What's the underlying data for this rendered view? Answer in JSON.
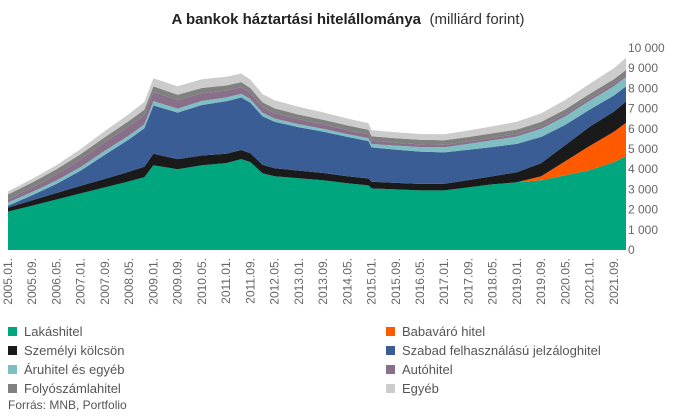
{
  "chart_data": {
    "type": "area",
    "title": "A bankok háztartási hitelállománya",
    "title_unit": "(milliárd forint)",
    "stacked": true,
    "x_tick_labels": [
      "2005.01.",
      "2005.09.",
      "2006.05.",
      "2007.01.",
      "2007.09.",
      "2008.05.",
      "2009.01.",
      "2009.09.",
      "2010.05.",
      "2011.01.",
      "2011.09.",
      "2012.05.",
      "2013.01.",
      "2013.09.",
      "2014.05.",
      "2015.01.",
      "2015.09.",
      "2016.05.",
      "2017.01.",
      "2017.09.",
      "2018.05.",
      "2019.01.",
      "2019.09.",
      "2020.05.",
      "2021.01.",
      "2021.09."
    ],
    "y_tick_labels": [
      "0",
      "1 000",
      "2 000",
      "3 000",
      "4 000",
      "5 000",
      "6 000",
      "7 000",
      "8 000",
      "9 000",
      "10 000"
    ],
    "ylim": [
      0,
      10000
    ],
    "legend_position": "bottom",
    "x": [
      "2005.01.",
      "2005.09.",
      "2006.05.",
      "2007.01.",
      "2007.09.",
      "2008.05.",
      "2008.10.",
      "2009.01.",
      "2009.09.",
      "2010.05.",
      "2011.01.",
      "2011.06.",
      "2011.09.",
      "2012.01.",
      "2012.05.",
      "2013.01.",
      "2013.09.",
      "2014.05.",
      "2014.12.",
      "2015.01.",
      "2015.09.",
      "2016.05.",
      "2017.01.",
      "2017.09.",
      "2018.05.",
      "2019.01.",
      "2019.09.",
      "2020.05.",
      "2021.01.",
      "2021.09.",
      "2022.01."
    ],
    "series": [
      {
        "name": "Lakáshitel",
        "color": "#00a67e",
        "values": [
          1900,
          2200,
          2500,
          2800,
          3100,
          3400,
          3600,
          4200,
          4000,
          4200,
          4300,
          4500,
          4350,
          3800,
          3650,
          3550,
          3450,
          3300,
          3200,
          3050,
          3000,
          2950,
          2950,
          3100,
          3250,
          3350,
          3450,
          3700,
          3950,
          4350,
          4650
        ]
      },
      {
        "name": "Babaváró hitel",
        "color": "#ff5a00",
        "values": [
          0,
          0,
          0,
          0,
          0,
          0,
          0,
          0,
          0,
          0,
          0,
          0,
          0,
          0,
          0,
          0,
          0,
          0,
          0,
          0,
          0,
          0,
          0,
          0,
          0,
          0,
          200,
          700,
          1200,
          1500,
          1650
        ]
      },
      {
        "name": "Személyi kölcsön",
        "color": "#1a1a1a",
        "values": [
          200,
          260,
          320,
          380,
          420,
          480,
          520,
          560,
          500,
          480,
          460,
          450,
          440,
          420,
          400,
          380,
          360,
          350,
          340,
          330,
          320,
          320,
          330,
          360,
          400,
          500,
          650,
          800,
          950,
          1000,
          1050
        ]
      },
      {
        "name": "Szabad felhasználású jelzáloghitel",
        "color": "#3a5d95",
        "values": [
          100,
          250,
          450,
          750,
          1200,
          1600,
          1900,
          2400,
          2300,
          2500,
          2600,
          2600,
          2500,
          2400,
          2300,
          2150,
          2050,
          1950,
          1850,
          1700,
          1650,
          1600,
          1550,
          1500,
          1450,
          1400,
          1300,
          1000,
          850,
          800,
          750
        ]
      },
      {
        "name": "Áruhitel és egyéb",
        "color": "#7fbfc4",
        "values": [
          150,
          160,
          170,
          180,
          190,
          200,
          200,
          210,
          200,
          200,
          190,
          190,
          180,
          170,
          160,
          150,
          140,
          140,
          150,
          170,
          200,
          230,
          260,
          290,
          330,
          370,
          400,
          420,
          440,
          460,
          470
        ]
      },
      {
        "name": "Autóhitel",
        "color": "#8a6f8a",
        "values": [
          150,
          220,
          300,
          380,
          420,
          450,
          460,
          460,
          420,
          380,
          340,
          320,
          300,
          280,
          260,
          240,
          220,
          200,
          180,
          160,
          140,
          130,
          120,
          120,
          120,
          120,
          120,
          120,
          120,
          120,
          120
        ]
      },
      {
        "name": "Folyószámlahitel",
        "color": "#808080",
        "values": [
          250,
          250,
          255,
          260,
          260,
          265,
          265,
          270,
          265,
          260,
          255,
          250,
          245,
          240,
          240,
          235,
          230,
          230,
          230,
          225,
          225,
          225,
          225,
          225,
          225,
          225,
          220,
          220,
          220,
          220,
          220
        ]
      },
      {
        "name": "Egyéb",
        "color": "#cccccc",
        "values": [
          150,
          180,
          210,
          250,
          300,
          350,
          380,
          400,
          420,
          430,
          430,
          430,
          420,
          410,
          400,
          380,
          360,
          340,
          320,
          300,
          290,
          290,
          300,
          320,
          350,
          380,
          430,
          470,
          500,
          550,
          600
        ]
      }
    ]
  },
  "source": "Forrás: MNB, Portfolio"
}
